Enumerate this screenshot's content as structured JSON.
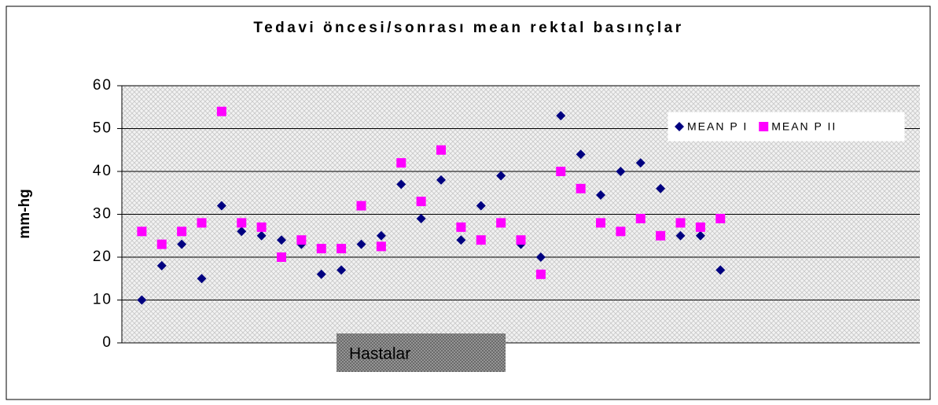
{
  "chart_data": {
    "type": "scatter",
    "title": "Tedavi öncesi/sonrası mean rektal basınçlar",
    "y_label": "mm-hg",
    "x_label": "Hastalar",
    "x": [
      1,
      2,
      3,
      4,
      5,
      6,
      7,
      8,
      9,
      10,
      11,
      12,
      13,
      14,
      15,
      16,
      17,
      18,
      19,
      20,
      21,
      22,
      23,
      24,
      25,
      26,
      27,
      28,
      29,
      30
    ],
    "xlim": [
      0,
      40
    ],
    "series": [
      {
        "name": "MEAN P I",
        "color": "#000080",
        "marker": "diamond",
        "values": [
          10,
          18,
          23,
          15,
          32,
          26,
          25,
          24,
          23,
          16,
          17,
          23,
          25,
          37,
          29,
          38,
          24,
          32,
          39,
          23,
          20,
          53,
          44,
          34.5,
          40,
          42,
          36,
          25,
          25,
          17
        ]
      },
      {
        "name": "MEAN P II",
        "color": "#ff00ff",
        "marker": "square",
        "values": [
          26,
          23,
          26,
          28,
          54,
          28,
          27,
          20,
          24,
          22,
          22,
          32,
          22.5,
          42,
          33,
          45,
          27,
          24,
          28,
          24,
          16,
          40,
          36,
          28,
          26,
          29,
          25,
          28,
          27,
          29
        ]
      }
    ],
    "ylim": [
      0,
      60
    ],
    "yticks": [
      0,
      10,
      20,
      30,
      40,
      50,
      60
    ],
    "grid": true,
    "legend": "top-right"
  }
}
